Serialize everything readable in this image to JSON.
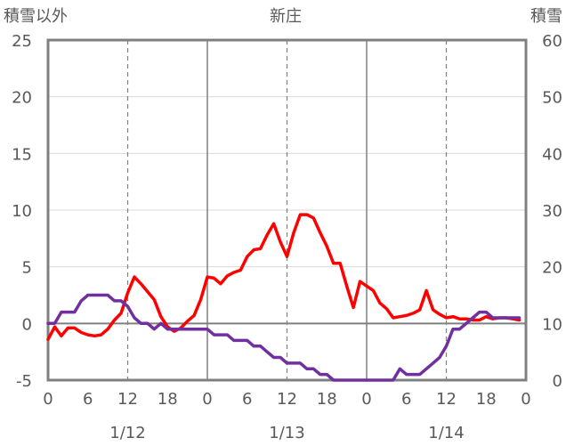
{
  "chart_data": {
    "type": "line",
    "title": "新庄",
    "left_axis_label": "積雪以外",
    "right_axis_label": "積雪",
    "left_ylim": [
      -5,
      25
    ],
    "left_yticks": [
      "-5",
      "0",
      "5",
      "10",
      "15",
      "20",
      "25"
    ],
    "right_ylim": [
      0,
      60
    ],
    "right_yticks": [
      "0",
      "10",
      "20",
      "30",
      "40",
      "50",
      "60"
    ],
    "x_hours_range": [
      0,
      72
    ],
    "x_tick_labels": [
      "0",
      "6",
      "12",
      "18",
      "0",
      "6",
      "12",
      "18",
      "0",
      "6",
      "12",
      "18",
      "0"
    ],
    "date_labels": [
      {
        "text": "1/12",
        "hour": 12
      },
      {
        "text": "1/13",
        "hour": 36
      },
      {
        "text": "1/14",
        "hour": 60
      }
    ],
    "gridlines": {
      "major_every_hours": 24,
      "dashed_every_hours": 12
    },
    "series": [
      {
        "axis": "left",
        "color": "#ff0000",
        "hours": [
          0,
          1,
          2,
          3,
          4,
          5,
          6,
          7,
          8,
          9,
          10,
          11,
          12,
          13,
          14,
          15,
          16,
          17,
          18,
          19,
          20,
          21,
          22,
          23,
          24,
          25,
          26,
          27,
          28,
          29,
          30,
          31,
          32,
          33,
          34,
          35,
          36,
          37,
          38,
          39,
          40,
          41,
          42,
          43,
          44,
          45,
          46,
          47,
          48,
          49,
          50,
          51,
          52,
          53,
          54,
          55,
          56,
          57,
          58,
          59,
          60,
          61,
          62,
          63,
          64,
          65,
          66,
          67,
          68,
          69,
          70,
          71
        ],
        "values": [
          -1.4,
          -0.3,
          -1.1,
          -0.4,
          -0.4,
          -0.8,
          -1.0,
          -1.1,
          -1.0,
          -0.5,
          0.3,
          0.9,
          2.7,
          4.1,
          3.5,
          2.8,
          2.1,
          0.6,
          -0.3,
          -0.7,
          -0.4,
          0.2,
          0.7,
          2.1,
          4.1,
          4.0,
          3.5,
          4.2,
          4.5,
          4.7,
          5.9,
          6.5,
          6.6,
          7.8,
          8.8,
          7.2,
          5.9,
          8.0,
          9.6,
          9.6,
          9.3,
          8.0,
          6.8,
          5.3,
          5.3,
          3.3,
          1.4,
          3.7,
          3.3,
          2.9,
          1.8,
          1.3,
          0.5,
          0.6,
          0.7,
          0.9,
          1.2,
          2.9,
          1.2,
          0.8,
          0.5,
          0.6,
          0.4,
          0.4,
          0.3,
          0.3,
          0.6,
          0.4,
          0.5,
          0.5,
          0.4,
          0.3
        ]
      },
      {
        "axis": "right",
        "color": "#7030a0",
        "hours": [
          0,
          1,
          2,
          3,
          4,
          5,
          6,
          7,
          8,
          9,
          10,
          11,
          12,
          13,
          14,
          15,
          16,
          17,
          18,
          19,
          20,
          21,
          22,
          23,
          24,
          25,
          26,
          27,
          28,
          29,
          30,
          31,
          32,
          33,
          34,
          35,
          36,
          37,
          38,
          39,
          40,
          41,
          42,
          43,
          44,
          45,
          46,
          47,
          48,
          49,
          50,
          51,
          52,
          53,
          54,
          55,
          56,
          57,
          58,
          59,
          60,
          61,
          62,
          63,
          64,
          65,
          66,
          67,
          68,
          69,
          70,
          71
        ],
        "values": [
          10,
          10,
          12,
          12,
          12,
          14,
          15,
          15,
          15,
          15,
          14,
          14,
          13,
          11,
          10,
          10,
          9,
          10,
          9,
          9,
          9,
          9,
          9,
          9,
          9,
          8,
          8,
          8,
          7,
          7,
          7,
          6,
          6,
          5,
          4,
          4,
          3,
          3,
          3,
          2,
          2,
          1,
          1,
          0,
          0,
          0,
          0,
          0,
          0,
          0,
          0,
          0,
          0,
          2,
          1,
          1,
          1,
          2,
          3,
          4,
          6,
          9,
          9,
          10,
          11,
          12,
          12,
          11,
          11,
          11,
          11,
          11
        ]
      }
    ]
  }
}
